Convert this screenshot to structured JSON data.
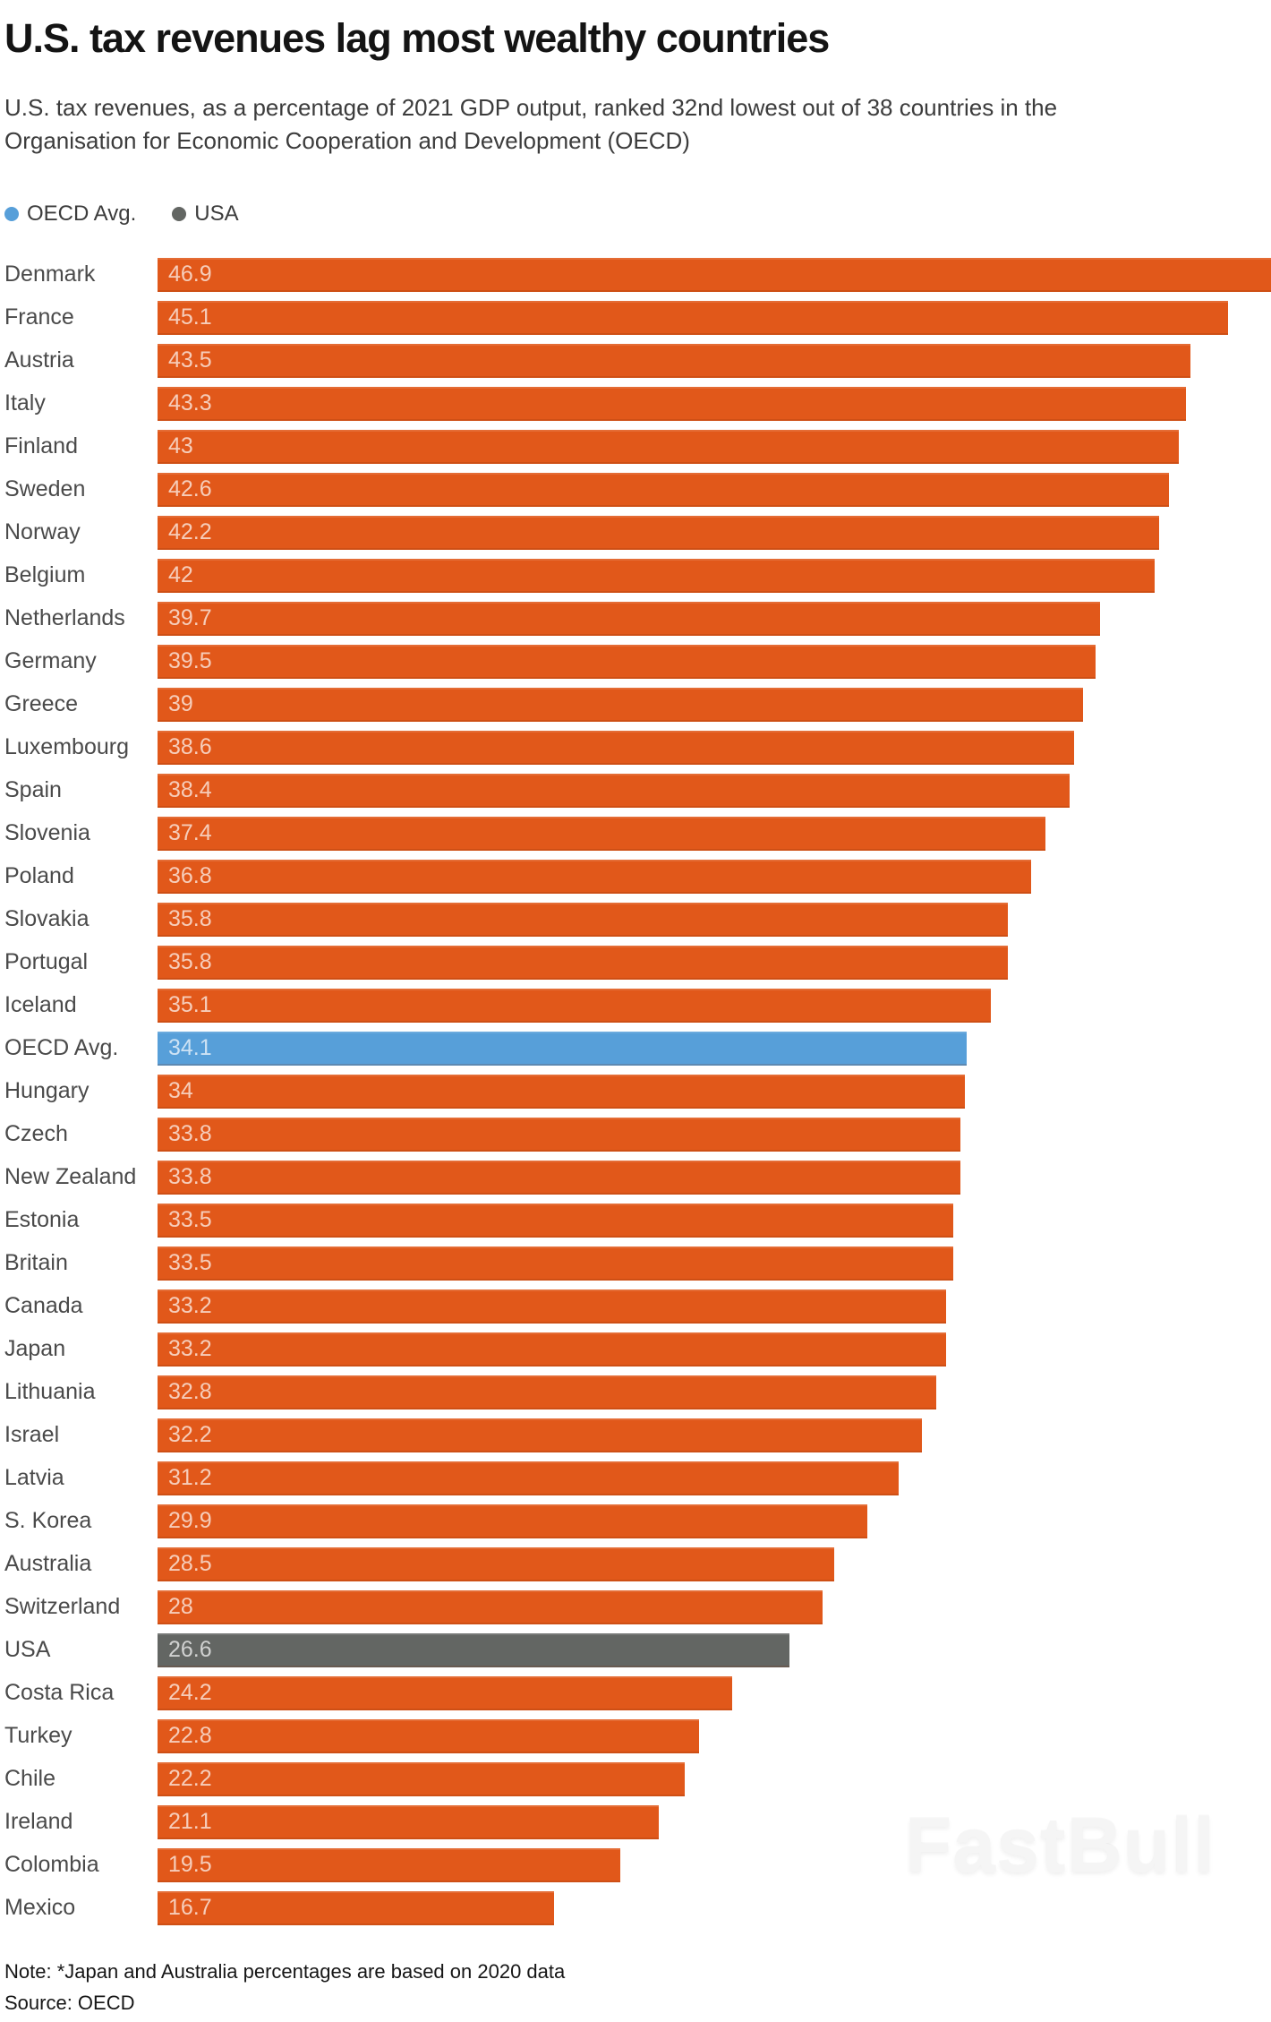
{
  "header": {
    "title": "U.S. tax revenues lag most wealthy countries",
    "subtitle": "U.S. tax revenues, as a percentage of 2021 GDP output, ranked 32nd lowest out of 38 countries in the Organisation for Economic Cooperation and Development (OECD)"
  },
  "legend": {
    "position": "top",
    "items": [
      {
        "label": "OECD Avg.",
        "color": "#579FD9"
      },
      {
        "label": "USA",
        "color": "#636663"
      }
    ]
  },
  "colors": {
    "bar_default": "#E1581A",
    "bar_oecd": "#579FD9",
    "bar_usa": "#636663",
    "value_label": "rgba(255,255,255,0.7)"
  },
  "chart_data": {
    "type": "bar",
    "orientation": "horizontal",
    "title": "U.S. tax revenues lag most wealthy countries",
    "xlabel": "",
    "ylabel": "",
    "xlim": [
      0,
      46.9
    ],
    "grid": false,
    "categories": [
      "Denmark",
      "France",
      "Austria",
      "Italy",
      "Finland",
      "Sweden",
      "Norway",
      "Belgium",
      "Netherlands",
      "Germany",
      "Greece",
      "Luxembourg",
      "Spain",
      "Slovenia",
      "Poland",
      "Slovakia",
      "Portugal",
      "Iceland",
      "OECD Avg.",
      "Hungary",
      "Czech",
      "New Zealand",
      "Estonia",
      "Britain",
      "Canada",
      "Japan",
      "Lithuania",
      "Israel",
      "Latvia",
      "S. Korea",
      "Australia",
      "Switzerland",
      "USA",
      "Costa Rica",
      "Turkey",
      "Chile",
      "Ireland",
      "Colombia",
      "Mexico"
    ],
    "values": [
      46.9,
      45.1,
      43.5,
      43.3,
      43,
      42.6,
      42.2,
      42,
      39.7,
      39.5,
      39,
      38.6,
      38.4,
      37.4,
      36.8,
      35.8,
      35.8,
      35.1,
      34.1,
      34,
      33.8,
      33.8,
      33.5,
      33.5,
      33.2,
      33.2,
      32.8,
      32.2,
      31.2,
      29.9,
      28.5,
      28,
      26.6,
      24.2,
      22.8,
      22.2,
      21.1,
      19.5,
      16.7
    ],
    "highlight_indices": {
      "oecd_avg": 18,
      "usa": 32
    }
  },
  "footer": {
    "note": "Note: *Japan and Australia percentages are based on 2020 data",
    "source": "Source: OECD"
  },
  "watermark": {
    "text": "FastBull"
  }
}
